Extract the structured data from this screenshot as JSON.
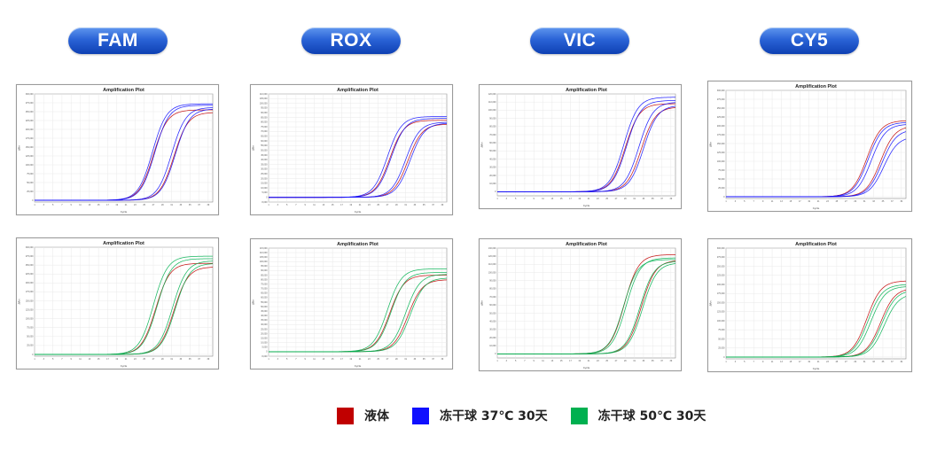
{
  "headers": [
    {
      "label": "FAM"
    },
    {
      "label": "ROX"
    },
    {
      "label": "VIC"
    },
    {
      "label": "CY5"
    }
  ],
  "legend": [
    {
      "label": "液体",
      "color": "#c00000"
    },
    {
      "label": "冻干球 37℃ 30天",
      "color": "#1010ff"
    },
    {
      "label": "冻干球 50℃ 30天",
      "color": "#00b050"
    }
  ],
  "chart_data": [
    {
      "type": "line",
      "channel": "FAM",
      "variant": "37C",
      "title": "Amplification Plot",
      "xlabel": "Cycle",
      "ylabel": "ΔRn",
      "xlim": [
        1,
        40
      ],
      "ylim": [
        -5000,
        300000
      ],
      "yticks": [
        "300,000",
        "275,000",
        "250,000",
        "225,000",
        "200,000",
        "175,000",
        "150,000",
        "125,000",
        "100,000",
        "75,000",
        "50,000",
        "25,000",
        "0"
      ],
      "grid": true,
      "series": [
        {
          "name": "液体",
          "color": "#c00000",
          "ct": 27.0,
          "plateau": 255000
        },
        {
          "name": "液体",
          "color": "#c00000",
          "ct": 31.5,
          "plateau": 248000
        },
        {
          "name": "冻干球 37℃ 30天",
          "color": "#1010ff",
          "ct": 27.3,
          "plateau": 268000
        },
        {
          "name": "冻干球 37℃ 30天",
          "color": "#1010ff",
          "ct": 26.8,
          "plateau": 272000
        },
        {
          "name": "冻干球 37℃ 30天",
          "color": "#1010ff",
          "ct": 31.0,
          "plateau": 262000
        },
        {
          "name": "冻干球 37℃ 30天",
          "color": "#1010ff",
          "ct": 31.8,
          "plateau": 258000
        }
      ]
    },
    {
      "type": "line",
      "channel": "ROX",
      "variant": "37C",
      "title": "Amplification Plot",
      "xlabel": "Cycle",
      "ylabel": "ΔRn",
      "xlim": [
        1,
        40
      ],
      "ylim": [
        -5000,
        110000
      ],
      "yticks": [
        "110,000",
        "105,000",
        "100,000",
        "95,000",
        "90,000",
        "85,000",
        "80,000",
        "75,000",
        "70,000",
        "65,000",
        "60,000",
        "55,000",
        "50,000",
        "45,000",
        "40,000",
        "35,000",
        "30,000",
        "25,000",
        "20,000",
        "15,000",
        "10,000",
        "5,000",
        "0",
        "-5,000"
      ],
      "grid": true,
      "series": [
        {
          "name": "液体",
          "color": "#c00000",
          "ct": 27.5,
          "plateau": 82000
        },
        {
          "name": "液体",
          "color": "#c00000",
          "ct": 31.5,
          "plateau": 78000
        },
        {
          "name": "冻干球 37℃ 30天",
          "color": "#1010ff",
          "ct": 27.0,
          "plateau": 86000
        },
        {
          "name": "冻干球 37℃ 30天",
          "color": "#1010ff",
          "ct": 27.8,
          "plateau": 84000
        },
        {
          "name": "冻干球 37℃ 30天",
          "color": "#1010ff",
          "ct": 31.0,
          "plateau": 80000
        },
        {
          "name": "冻干球 37℃ 30天",
          "color": "#1010ff",
          "ct": 32.0,
          "plateau": 79000
        }
      ]
    },
    {
      "type": "line",
      "channel": "VIC",
      "variant": "37C",
      "title": "Amplification Plot",
      "xlabel": "Cycle",
      "ylabel": "ΔRn",
      "xlim": [
        1,
        40
      ],
      "ylim": [
        -5000,
        120000
      ],
      "yticks": [
        "120,000",
        "110,000",
        "100,000",
        "90,000",
        "80,000",
        "70,000",
        "60,000",
        "50,000",
        "40,000",
        "30,000",
        "20,000",
        "10,000",
        "0"
      ],
      "grid": true,
      "series": [
        {
          "name": "液体",
          "color": "#c00000",
          "ct": 29.0,
          "plateau": 108000
        },
        {
          "name": "液体",
          "color": "#c00000",
          "ct": 32.5,
          "plateau": 104000
        },
        {
          "name": "冻干球 37℃ 30天",
          "color": "#1010ff",
          "ct": 28.7,
          "plateau": 116000
        },
        {
          "name": "冻干球 37℃ 30天",
          "color": "#1010ff",
          "ct": 29.3,
          "plateau": 112000
        },
        {
          "name": "冻干球 37℃ 30天",
          "color": "#1010ff",
          "ct": 32.0,
          "plateau": 110000
        },
        {
          "name": "冻干球 37℃ 30天",
          "color": "#1010ff",
          "ct": 33.0,
          "plateau": 106000
        }
      ]
    },
    {
      "type": "line",
      "channel": "CY5",
      "variant": "37C",
      "title": "Amplification Plot",
      "xlabel": "Cycle",
      "ylabel": "ΔRn",
      "xlim": [
        1,
        40
      ],
      "ylim": [
        -5000,
        300000
      ],
      "yticks": [
        "300,000",
        "275,000",
        "250,000",
        "225,000",
        "200,000",
        "175,000",
        "150,000",
        "125,000",
        "100,000",
        "75,000",
        "50,000",
        "25,000",
        "0"
      ],
      "grid": true,
      "series": [
        {
          "name": "液体",
          "color": "#c00000",
          "ct": 31.5,
          "plateau": 215000
        },
        {
          "name": "液体",
          "color": "#c00000",
          "ct": 34.5,
          "plateau": 200000
        },
        {
          "name": "冻干球 37℃ 30天",
          "color": "#1010ff",
          "ct": 31.8,
          "plateau": 210000
        },
        {
          "name": "冻干球 37℃ 30天",
          "color": "#1010ff",
          "ct": 32.5,
          "plateau": 205000
        },
        {
          "name": "冻干球 37℃ 30天",
          "color": "#1010ff",
          "ct": 34.8,
          "plateau": 190000
        },
        {
          "name": "冻干球 37℃ 30天",
          "color": "#1010ff",
          "ct": 35.2,
          "plateau": 170000
        }
      ]
    },
    {
      "type": "line",
      "channel": "FAM",
      "variant": "50C",
      "title": "Amplification Plot",
      "xlabel": "Cycle",
      "ylabel": "ΔRn",
      "xlim": [
        1,
        40
      ],
      "ylim": [
        -5000,
        300000
      ],
      "yticks": [
        "300,000",
        "275,000",
        "250,000",
        "225,000",
        "200,000",
        "175,000",
        "150,000",
        "125,000",
        "100,000",
        "75,000",
        "50,000",
        "25,000",
        "0"
      ],
      "grid": true,
      "series": [
        {
          "name": "液体",
          "color": "#c00000",
          "ct": 27.5,
          "plateau": 255000
        },
        {
          "name": "液体",
          "color": "#c00000",
          "ct": 31.5,
          "plateau": 245000
        },
        {
          "name": "冻干球 50℃ 30天",
          "color": "#00b050",
          "ct": 27.0,
          "plateau": 275000
        },
        {
          "name": "冻干球 50℃ 30天",
          "color": "#00b050",
          "ct": 27.8,
          "plateau": 268000
        },
        {
          "name": "冻干球 50℃ 30天",
          "color": "#00b050",
          "ct": 31.2,
          "plateau": 262000
        },
        {
          "name": "冻干球 50℃ 30天",
          "color": "#00b050",
          "ct": 31.8,
          "plateau": 255000
        }
      ]
    },
    {
      "type": "line",
      "channel": "ROX",
      "variant": "50C",
      "title": "Amplification Plot",
      "xlabel": "Cycle",
      "ylabel": "ΔRn",
      "xlim": [
        1,
        40
      ],
      "ylim": [
        -5000,
        115000
      ],
      "yticks": [
        "115,000",
        "110,000",
        "105,000",
        "100,000",
        "95,000",
        "90,000",
        "85,000",
        "80,000",
        "75,000",
        "70,000",
        "65,000",
        "60,000",
        "55,000",
        "50,000",
        "45,000",
        "40,000",
        "35,000",
        "30,000",
        "25,000",
        "20,000",
        "15,000",
        "10,000",
        "5,000",
        "0",
        "-5,000"
      ],
      "grid": true,
      "series": [
        {
          "name": "液体",
          "color": "#c00000",
          "ct": 27.5,
          "plateau": 85000
        },
        {
          "name": "液体",
          "color": "#c00000",
          "ct": 31.5,
          "plateau": 80000
        },
        {
          "name": "冻干球 50℃ 30天",
          "color": "#00b050",
          "ct": 27.0,
          "plateau": 92000
        },
        {
          "name": "冻干球 50℃ 30天",
          "color": "#00b050",
          "ct": 27.8,
          "plateau": 88000
        },
        {
          "name": "冻干球 50℃ 30天",
          "color": "#00b050",
          "ct": 31.0,
          "plateau": 86000
        },
        {
          "name": "冻干球 50℃ 30天",
          "color": "#00b050",
          "ct": 32.0,
          "plateau": 82000
        }
      ]
    },
    {
      "type": "line",
      "channel": "VIC",
      "variant": "50C",
      "title": "Amplification Plot",
      "xlabel": "Cycle",
      "ylabel": "ΔRn",
      "xlim": [
        1,
        40
      ],
      "ylim": [
        -5000,
        130000
      ],
      "yticks": [
        "130,000",
        "120,000",
        "110,000",
        "100,000",
        "90,000",
        "80,000",
        "70,000",
        "60,000",
        "50,000",
        "40,000",
        "30,000",
        "20,000",
        "10,000",
        "0"
      ],
      "grid": true,
      "series": [
        {
          "name": "液体",
          "color": "#c00000",
          "ct": 28.8,
          "plateau": 122000
        },
        {
          "name": "液体",
          "color": "#c00000",
          "ct": 32.5,
          "plateau": 115000
        },
        {
          "name": "冻干球 50℃ 30天",
          "color": "#00b050",
          "ct": 29.2,
          "plateau": 118000
        },
        {
          "name": "冻干球 50℃ 30天",
          "color": "#00b050",
          "ct": 28.6,
          "plateau": 116000
        },
        {
          "name": "冻干球 50℃ 30天",
          "color": "#00b050",
          "ct": 32.2,
          "plateau": 114000
        },
        {
          "name": "冻干球 50℃ 30天",
          "color": "#00b050",
          "ct": 32.8,
          "plateau": 112000
        }
      ]
    },
    {
      "type": "line",
      "channel": "CY5",
      "variant": "50C",
      "title": "Amplification Plot",
      "xlabel": "Cycle",
      "ylabel": "ΔRn",
      "xlim": [
        1,
        40
      ],
      "ylim": [
        -5000,
        300000
      ],
      "yticks": [
        "300,000",
        "275,000",
        "250,000",
        "225,000",
        "200,000",
        "175,000",
        "150,000",
        "125,000",
        "100,000",
        "75,000",
        "50,000",
        "25,000",
        "0"
      ],
      "grid": true,
      "series": [
        {
          "name": "液体",
          "color": "#c00000",
          "ct": 31.5,
          "plateau": 210000
        },
        {
          "name": "液体",
          "color": "#c00000",
          "ct": 34.5,
          "plateau": 190000
        },
        {
          "name": "冻干球 50℃ 30天",
          "color": "#00b050",
          "ct": 31.8,
          "plateau": 200000
        },
        {
          "name": "冻干球 50℃ 30天",
          "color": "#00b050",
          "ct": 32.4,
          "plateau": 195000
        },
        {
          "name": "冻干球 50℃ 30天",
          "color": "#00b050",
          "ct": 34.8,
          "plateau": 185000
        },
        {
          "name": "冻干球 50℃ 30天",
          "color": "#00b050",
          "ct": 35.3,
          "plateau": 175000
        }
      ]
    }
  ]
}
